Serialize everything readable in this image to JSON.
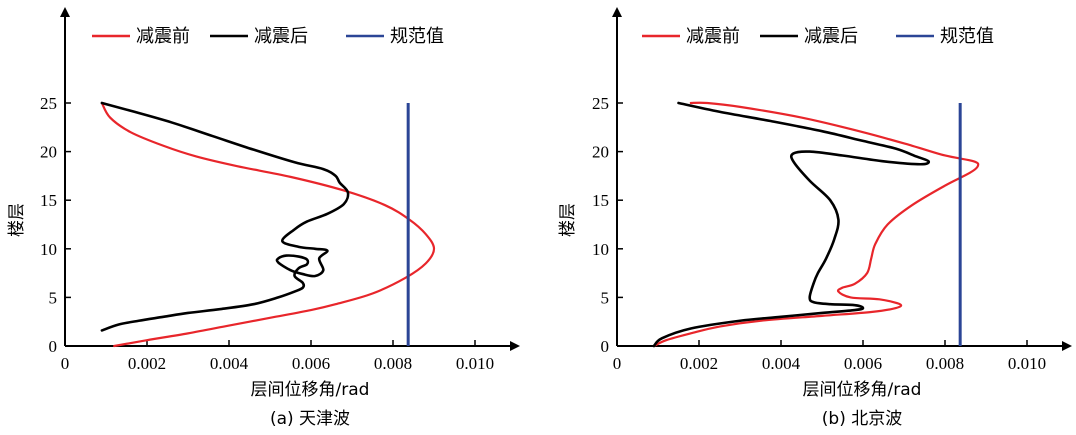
{
  "chart_data": [
    {
      "type": "line",
      "caption": "(a) 天津波",
      "xlabel": "层间位移角/rad",
      "ylabel": "楼层",
      "xlim": [
        0,
        0.0112
      ],
      "ylim": [
        0,
        33
      ],
      "xticks": [
        0,
        0.002,
        0.004,
        0.006,
        0.008,
        0.01
      ],
      "xtick_labels": [
        "0",
        "0.002",
        "0.004",
        "0.006",
        "0.008",
        "0.010"
      ],
      "yticks": [
        0,
        5,
        10,
        15,
        20,
        25
      ],
      "ytick_labels": [
        "0",
        "5",
        "10",
        "15",
        "20",
        "25"
      ],
      "legend": {
        "position": "top",
        "entries": [
          "减震前",
          "减震后",
          "规范值"
        ]
      },
      "series": [
        {
          "name": "减震前",
          "color": "#e8262b",
          "x": [
            0.0012,
            0.002,
            0.003,
            0.004,
            0.005,
            0.006,
            0.0066,
            0.0075,
            0.0083,
            0.0088,
            0.009,
            0.0088,
            0.0084,
            0.0078,
            0.0068,
            0.0055,
            0.0042,
            0.0032,
            0.0024,
            0.0016,
            0.0011,
            0.0009
          ],
          "y": [
            0,
            0.6,
            1.3,
            2.1,
            2.9,
            3.7,
            4.3,
            5.4,
            7.0,
            8.5,
            10.0,
            11.5,
            13.0,
            14.5,
            16.0,
            17.4,
            18.5,
            19.5,
            20.6,
            22.0,
            23.5,
            25.0
          ]
        },
        {
          "name": "减震后",
          "color": "#000000",
          "x": [
            0.0009,
            0.0016,
            0.0026,
            0.0036,
            0.0046,
            0.0056,
            0.0063,
            0.0066,
            0.0067,
            0.0069,
            0.0068,
            0.0064,
            0.0059,
            0.0056,
            0.0053,
            0.0057,
            0.0061,
            0.0064,
            0.0062,
            0.0063,
            0.0061,
            0.0058,
            0.0055,
            0.0052,
            0.0052,
            0.0054,
            0.0057,
            0.0059,
            0.0059,
            0.0057,
            0.0056,
            0.0058,
            0.0058,
            0.0056,
            0.0052,
            0.0046,
            0.0038,
            0.003,
            0.0024,
            0.0018,
            0.0013,
            0.0009
          ],
          "y": [
            25.0,
            24.2,
            23.0,
            21.6,
            20.2,
            18.9,
            18.2,
            17.5,
            16.8,
            15.8,
            14.6,
            13.6,
            12.8,
            12.0,
            10.8,
            10.2,
            10.0,
            9.8,
            9.0,
            7.8,
            7.2,
            7.4,
            7.8,
            8.6,
            9.0,
            9.3,
            9.2,
            8.9,
            8.4,
            8.0,
            7.2,
            6.5,
            6.0,
            5.6,
            5.0,
            4.3,
            3.8,
            3.4,
            3.0,
            2.6,
            2.2,
            1.6
          ]
        },
        {
          "name": "规范值",
          "color": "#2b4596",
          "x": [
            0.00837,
            0.00837
          ],
          "y": [
            0,
            25
          ]
        }
      ]
    },
    {
      "type": "line",
      "caption": "(b) 北京波",
      "xlabel": "层间位移角/rad",
      "ylabel": "楼层",
      "xlim": [
        0,
        0.0112
      ],
      "ylim": [
        0,
        33
      ],
      "xticks": [
        0,
        0.002,
        0.004,
        0.006,
        0.008,
        0.01
      ],
      "xtick_labels": [
        "0",
        "0.002",
        "0.004",
        "0.006",
        "0.008",
        "0.010"
      ],
      "yticks": [
        0,
        5,
        10,
        15,
        20,
        25
      ],
      "ytick_labels": [
        "0",
        "5",
        "10",
        "15",
        "20",
        "25"
      ],
      "legend": {
        "position": "top",
        "entries": [
          "减震前",
          "减震后",
          "规范值"
        ]
      },
      "series": [
        {
          "name": "减震前",
          "color": "#e8262b",
          "x": [
            0.0009,
            0.0012,
            0.0018,
            0.0025,
            0.0035,
            0.005,
            0.0062,
            0.0068,
            0.0069,
            0.0064,
            0.0057,
            0.0054,
            0.0055,
            0.0058,
            0.0061,
            0.0062,
            0.0063,
            0.0066,
            0.0072,
            0.008,
            0.0086,
            0.0088,
            0.0087,
            0.008,
            0.0072,
            0.006,
            0.0045,
            0.003,
            0.0022,
            0.0018
          ],
          "y": [
            0,
            0.6,
            1.3,
            2.0,
            2.6,
            3.1,
            3.5,
            3.9,
            4.3,
            4.8,
            5.0,
            5.6,
            6.0,
            6.4,
            7.5,
            9.0,
            10.5,
            12.5,
            14.5,
            16.5,
            17.8,
            18.5,
            19.0,
            19.6,
            20.6,
            22.0,
            23.5,
            24.6,
            25.0,
            25.0
          ]
        },
        {
          "name": "减震后",
          "color": "#000000",
          "x": [
            0.0015,
            0.0025,
            0.0038,
            0.005,
            0.006,
            0.0068,
            0.0073,
            0.0076,
            0.0074,
            0.0065,
            0.0055,
            0.0047,
            0.0043,
            0.0043,
            0.0047,
            0.0052,
            0.0054,
            0.0053,
            0.0051,
            0.0049,
            0.0048,
            0.0047,
            0.0048,
            0.0052,
            0.0058,
            0.006,
            0.0058,
            0.005,
            0.004,
            0.003,
            0.0018,
            0.0011,
            0.0009
          ],
          "y": [
            25.0,
            24.1,
            23.1,
            22.1,
            21.1,
            20.3,
            19.5,
            19.0,
            18.7,
            19.0,
            19.6,
            20.0,
            19.8,
            19.0,
            17.0,
            15.0,
            13.0,
            11.0,
            9.0,
            7.5,
            6.5,
            5.0,
            4.5,
            4.3,
            4.2,
            3.9,
            3.7,
            3.4,
            3.0,
            2.6,
            1.8,
            0.8,
            0
          ]
        },
        {
          "name": "规范值",
          "color": "#2b4596",
          "x": [
            0.00837,
            0.00837
          ],
          "y": [
            0,
            25
          ]
        }
      ]
    }
  ]
}
